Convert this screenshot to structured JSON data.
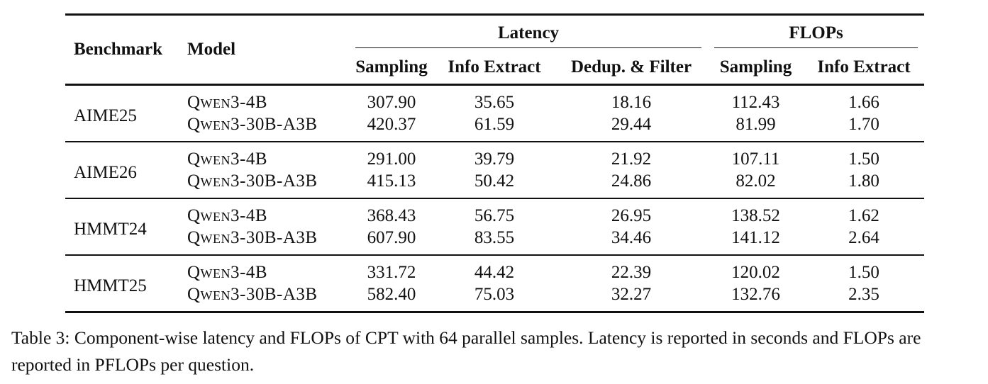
{
  "table": {
    "headers": {
      "benchmark": "Benchmark",
      "model": "Model",
      "latency": "Latency",
      "flops": "FLOPs",
      "latency_cols": [
        "Sampling",
        "Info Extract",
        "Dedup. & Filter"
      ],
      "flops_cols": [
        "Sampling",
        "Info Extract"
      ]
    },
    "groups": [
      {
        "benchmark": "AIME25",
        "rows": [
          {
            "model": "Qwen3-4B",
            "lat_sampling": "307.90",
            "lat_info": "35.65",
            "lat_dedup": "18.16",
            "fl_sampling": "112.43",
            "fl_info": "1.66"
          },
          {
            "model": "Qwen3-30B-A3B",
            "lat_sampling": "420.37",
            "lat_info": "61.59",
            "lat_dedup": "29.44",
            "fl_sampling": "81.99",
            "fl_info": "1.70"
          }
        ]
      },
      {
        "benchmark": "AIME26",
        "rows": [
          {
            "model": "Qwen3-4B",
            "lat_sampling": "291.00",
            "lat_info": "39.79",
            "lat_dedup": "21.92",
            "fl_sampling": "107.11",
            "fl_info": "1.50"
          },
          {
            "model": "Qwen3-30B-A3B",
            "lat_sampling": "415.13",
            "lat_info": "50.42",
            "lat_dedup": "24.86",
            "fl_sampling": "82.02",
            "fl_info": "1.80"
          }
        ]
      },
      {
        "benchmark": "HMMT24",
        "rows": [
          {
            "model": "Qwen3-4B",
            "lat_sampling": "368.43",
            "lat_info": "56.75",
            "lat_dedup": "26.95",
            "fl_sampling": "138.52",
            "fl_info": "1.62"
          },
          {
            "model": "Qwen3-30B-A3B",
            "lat_sampling": "607.90",
            "lat_info": "83.55",
            "lat_dedup": "34.46",
            "fl_sampling": "141.12",
            "fl_info": "2.64"
          }
        ]
      },
      {
        "benchmark": "HMMT25",
        "rows": [
          {
            "model": "Qwen3-4B",
            "lat_sampling": "331.72",
            "lat_info": "44.42",
            "lat_dedup": "22.39",
            "fl_sampling": "120.02",
            "fl_info": "1.50"
          },
          {
            "model": "Qwen3-30B-A3B",
            "lat_sampling": "582.40",
            "lat_info": "75.03",
            "lat_dedup": "32.27",
            "fl_sampling": "132.76",
            "fl_info": "2.35"
          }
        ]
      }
    ]
  },
  "caption": "Table 3: Component-wise latency and FLOPs of CPT with 64 parallel samples. Latency is reported in seconds and FLOPs are reported in PFLOPs per question."
}
